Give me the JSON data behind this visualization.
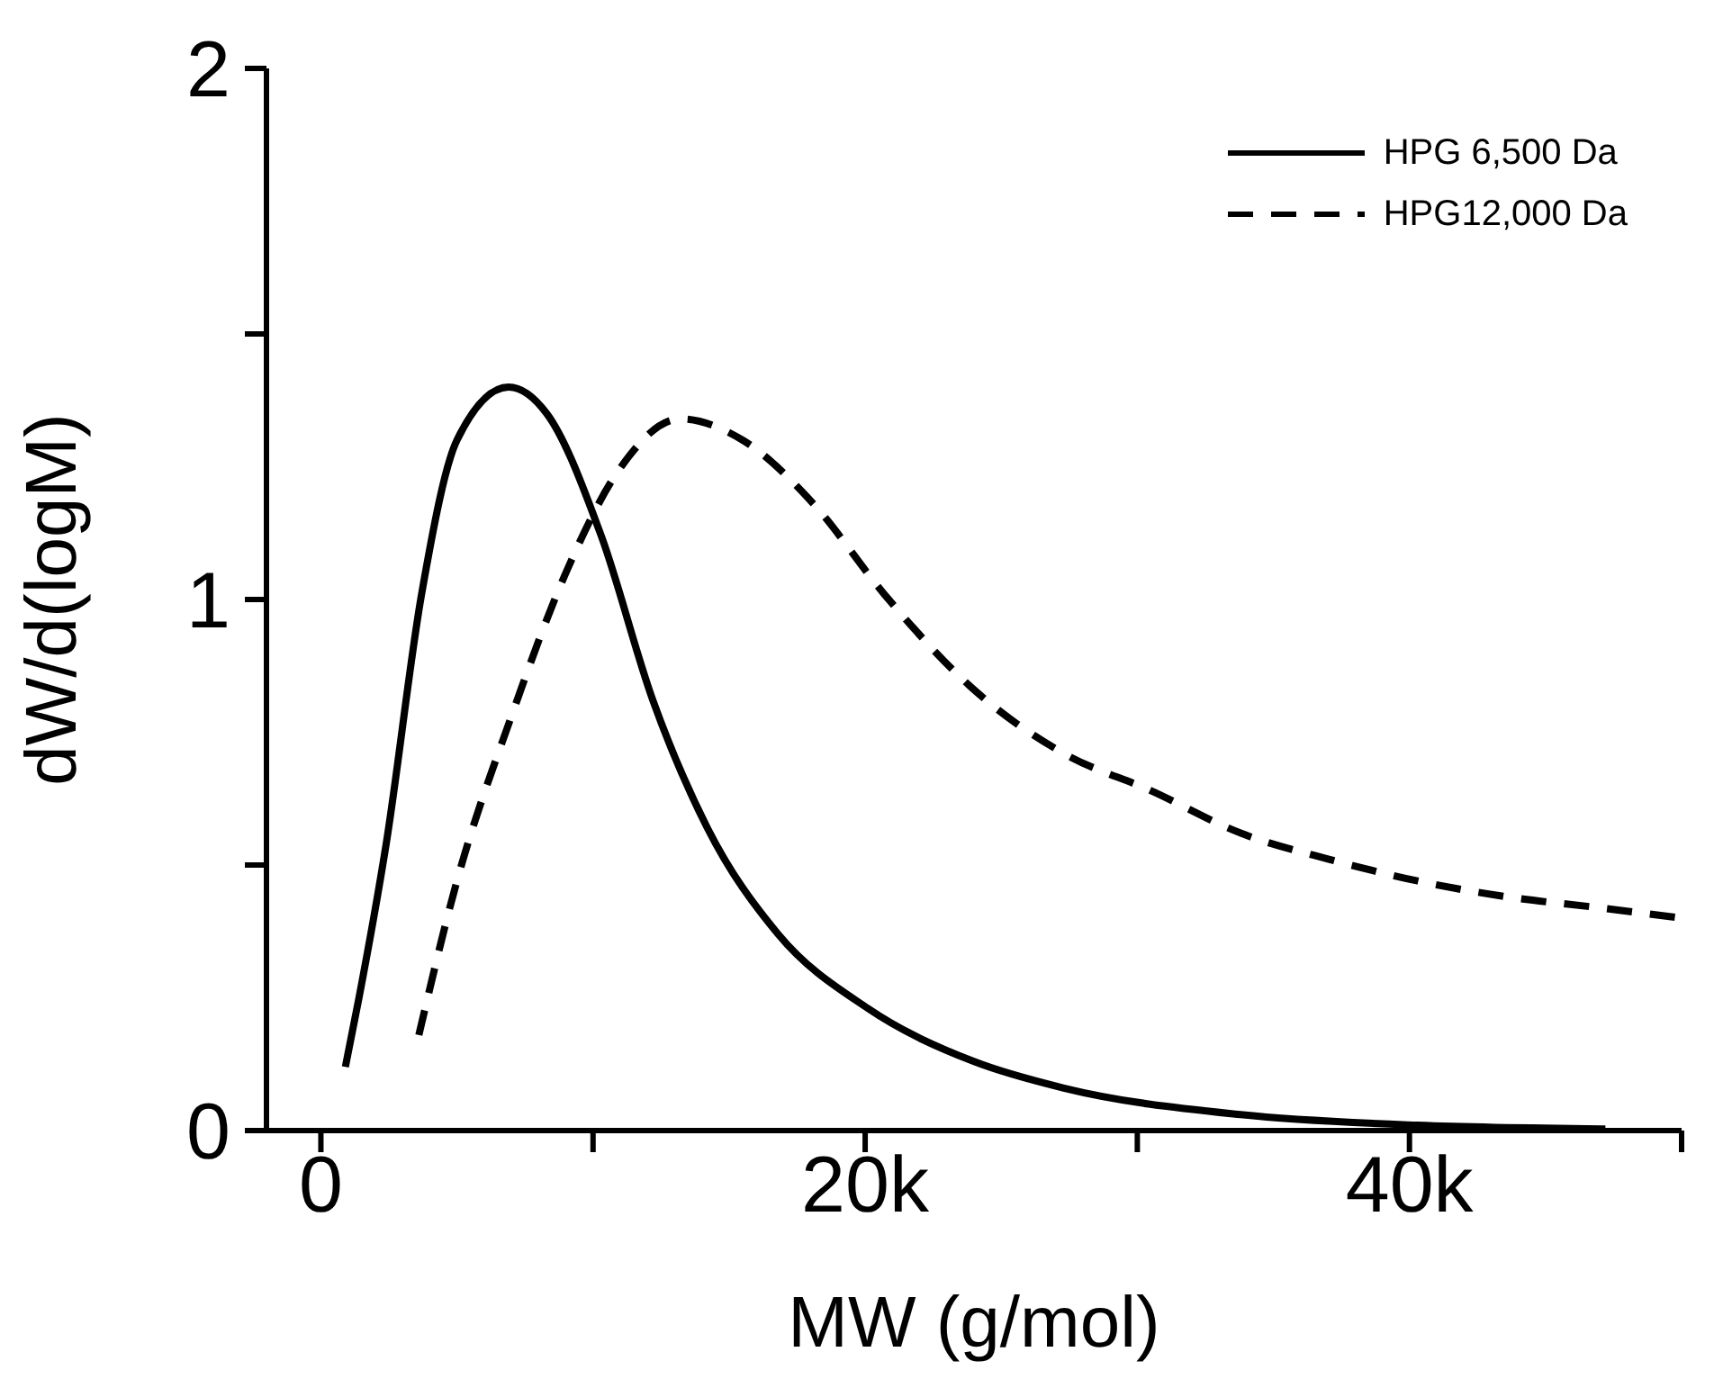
{
  "chart_data": {
    "type": "line",
    "xlabel": "MW (g/mol)",
    "ylabel": "dW/d(logM)",
    "xlim": [
      -2000,
      50000
    ],
    "ylim": [
      0,
      2
    ],
    "xticks": [
      {
        "value": 0,
        "label": "0"
      },
      {
        "value": 10000,
        "label": null
      },
      {
        "value": 20000,
        "label": "20k"
      },
      {
        "value": 30000,
        "label": null
      },
      {
        "value": 40000,
        "label": "40k"
      },
      {
        "value": 50000,
        "label": null
      }
    ],
    "yticks": [
      0,
      {
        "value": 0.5,
        "label": null
      },
      1,
      {
        "value": 1.5,
        "label": null
      },
      2
    ],
    "grid": false,
    "legend": "top right",
    "marker": "none",
    "series": [
      {
        "name": "HPG 6,500 Da",
        "color": "#000000",
        "line_style": "solid",
        "x": [
          900,
          1400,
          2400,
          3700,
          5000,
          6900,
          8300,
          10300,
          12200,
          14200,
          16800,
          20100,
          24000,
          27300,
          33800,
          40300,
          47200
        ],
        "values": [
          0.12,
          0.25,
          0.54,
          1.01,
          1.3,
          1.4,
          1.35,
          1.12,
          0.81,
          0.57,
          0.37,
          0.23,
          0.13,
          0.08,
          0.03,
          0.01,
          0.003
        ]
      },
      {
        "name": "HPG12,000 Da",
        "color": "#000000",
        "line_style": "dashed",
        "x": [
          3600,
          5000,
          7000,
          9000,
          10900,
          13200,
          15500,
          18100,
          20700,
          24000,
          27300,
          30500,
          33800,
          37100,
          40300,
          43600,
          46900,
          50000
        ],
        "values": [
          0.18,
          0.47,
          0.78,
          1.05,
          1.24,
          1.34,
          1.3,
          1.18,
          1.01,
          0.83,
          0.71,
          0.64,
          0.56,
          0.51,
          0.47,
          0.44,
          0.42,
          0.4
        ]
      }
    ]
  }
}
